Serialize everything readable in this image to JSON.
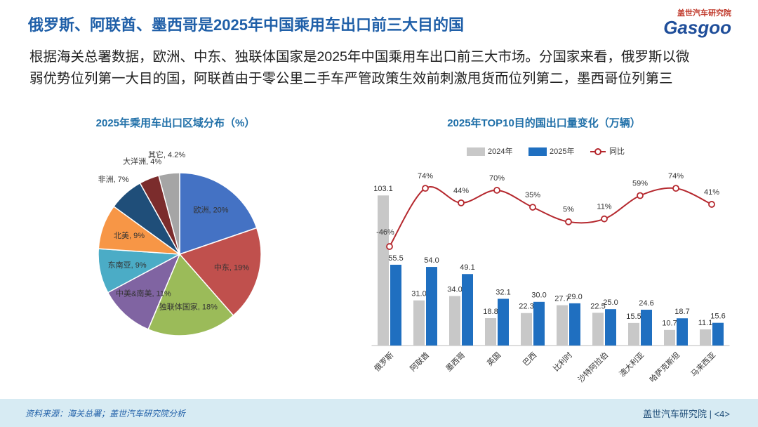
{
  "header": {
    "title": "俄罗斯、阿联酋、墨西哥是2025年中国乘用车出口前三大目的国",
    "logo_cn": "盖世汽车研究院",
    "logo_en": "Gasgoo",
    "body": [
      "根据海关总署数据，欧洲、中东、独联体国家是2025年中国乘用车出口前三大市场。分国家来看，俄罗斯以微",
      "弱优势位列第一大目的国，阿联酋由于零公里二手车严管政策生效前刺激甩货而位列第二，墨西哥位列第三"
    ]
  },
  "chart_data": [
    {
      "type": "pie",
      "title": "2025年乘用车出口区域分布（%）",
      "values": [
        20,
        19,
        18,
        11,
        9,
        9,
        7,
        4,
        4.2
      ],
      "value_labels": [
        "欧洲, 20%",
        "中东, 19%",
        "独联体国家, 18%",
        "中美&南美, 11%",
        "东南亚, 9%",
        "北美, 9%",
        "非洲, 7%",
        "大洋洲, 4%",
        "其它, 4.2%"
      ],
      "colors": [
        "#4472c4",
        "#c0504d",
        "#9bbb59",
        "#8064a2",
        "#4bacc6",
        "#f79646",
        "#1f4e79",
        "#7b2c2c",
        "#a5a5a5"
      ]
    },
    {
      "type": "bar",
      "title": "2025年TOP10目的国出口量变化（万辆）",
      "categories": [
        "俄罗斯",
        "阿联酋",
        "墨西哥",
        "英国",
        "巴西",
        "比利时",
        "沙特阿拉伯",
        "澳大利亚",
        "哈萨克斯坦",
        "马来西亚"
      ],
      "series": [
        {
          "name": "2024年",
          "color": "#c8c8c8",
          "values": [
            103.1,
            31.0,
            34.0,
            18.8,
            22.3,
            27.7,
            22.5,
            15.5,
            10.7,
            11.1
          ],
          "value_labels": [
            "103.1",
            "31.0",
            "34.0",
            "18.8",
            "22.3",
            "27.7",
            "22.5",
            "15.5",
            "10.7",
            "11.1"
          ]
        },
        {
          "name": "2025年",
          "color": "#1f6fc0",
          "values": [
            55.5,
            54.0,
            49.1,
            32.1,
            30.0,
            29.0,
            25.0,
            24.6,
            18.7,
            15.6
          ],
          "value_labels": [
            "55.5",
            "54.0",
            "49.1",
            "32.1",
            "30.0",
            "29.0",
            "25.0",
            "24.6",
            "18.7",
            "15.6"
          ]
        },
        {
          "name": "同比",
          "color": "#b5282e",
          "type": "line",
          "axis": "y2",
          "values": [
            -46,
            74,
            44,
            70,
            35,
            5,
            11,
            59,
            74,
            41
          ],
          "value_labels": [
            "-46%",
            "74%",
            "44%",
            "70%",
            "35%",
            "5%",
            "11%",
            "59%",
            "74%",
            "41%"
          ]
        }
      ],
      "ylim": [
        0,
        110
      ],
      "y2lim": [
        -250,
        80
      ]
    }
  ],
  "footer": {
    "source": "资料来源：海关总署；盖世汽车研究院分析",
    "page": "盖世汽车研究院 | <4>"
  }
}
